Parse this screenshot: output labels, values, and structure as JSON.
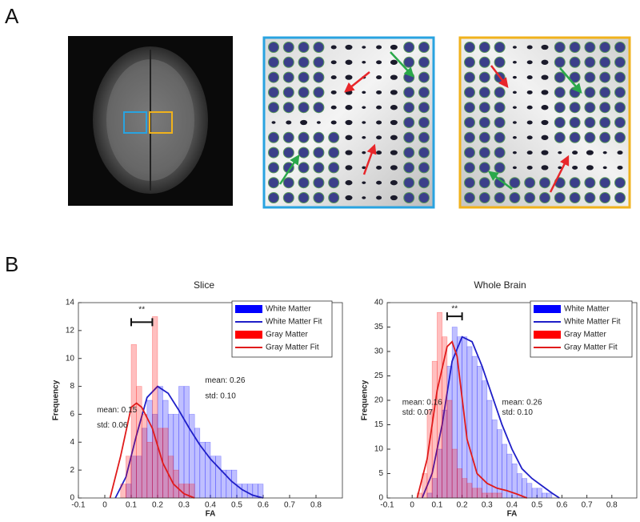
{
  "panel_labels": [
    "A",
    "B"
  ],
  "chart_data": [
    {
      "type": "histogram",
      "title": "Slice",
      "xlabel": "FA",
      "ylabel": "Frequency",
      "xlim": [
        -0.1,
        0.9
      ],
      "xticks": [
        -0.1,
        0,
        0.1,
        0.2,
        0.3,
        0.4,
        0.5,
        0.6,
        0.7,
        0.8
      ],
      "ylim": [
        0,
        14
      ],
      "yticks": [
        0,
        2,
        4,
        6,
        8,
        10,
        12,
        14
      ],
      "legend": "upper right",
      "bins": [
        0,
        0.02,
        0.04,
        0.06,
        0.08,
        0.1,
        0.12,
        0.14,
        0.16,
        0.18,
        0.2,
        0.22,
        0.24,
        0.26,
        0.28,
        0.3,
        0.32,
        0.34,
        0.36,
        0.38,
        0.4,
        0.42,
        0.44,
        0.46,
        0.48,
        0.5,
        0.52,
        0.54,
        0.56,
        0.58,
        0.6,
        0.62,
        0.64
      ],
      "series": [
        {
          "name": "White Matter",
          "color": "#0000ff",
          "values": [
            0,
            0,
            0,
            0,
            1,
            3,
            3,
            5,
            7,
            6,
            8,
            7,
            6,
            6,
            8,
            8,
            6,
            5,
            4,
            4,
            3,
            3,
            2,
            2,
            2,
            1,
            1,
            1,
            1,
            1,
            0,
            0
          ]
        },
        {
          "name": "White Matter Fit",
          "color": "#1f1fc8",
          "type": "line",
          "x": [
            0.04,
            0.08,
            0.12,
            0.16,
            0.2,
            0.24,
            0.28,
            0.32,
            0.36,
            0.4,
            0.44,
            0.48,
            0.52,
            0.56,
            0.6
          ],
          "values": [
            0,
            1.5,
            4.5,
            7.2,
            8,
            7.5,
            6.3,
            5,
            3.8,
            2.8,
            2,
            1.2,
            0.6,
            0.2,
            0
          ]
        },
        {
          "name": "Gray Matter",
          "color": "#ff0000",
          "values": [
            0,
            0,
            0,
            1,
            3,
            11,
            8,
            6,
            4,
            13,
            5,
            5,
            3,
            2,
            1,
            1,
            1,
            0,
            0,
            0,
            0,
            0,
            0,
            0,
            0,
            0,
            0,
            0,
            0,
            0,
            0,
            0
          ]
        },
        {
          "name": "Gray Matter Fit",
          "color": "#e01b1b",
          "type": "line",
          "x": [
            0.02,
            0.06,
            0.1,
            0.12,
            0.14,
            0.18,
            0.22,
            0.26,
            0.3,
            0.34
          ],
          "values": [
            0,
            3,
            6.5,
            6.8,
            6.5,
            5,
            2.5,
            1,
            0.3,
            0
          ]
        }
      ],
      "annotations": [
        {
          "text": "**",
          "color": "#111111"
        },
        {
          "text": "mean: 0.15",
          "color": "#d42020"
        },
        {
          "text": "std: 0.06",
          "color": "#d42020"
        },
        {
          "text": "mean: 0.26",
          "color": "#2a2ab8"
        },
        {
          "text": "std: 0.10",
          "color": "#2a2ab8"
        }
      ]
    },
    {
      "type": "histogram",
      "title": "Whole Brain",
      "xlabel": "FA",
      "ylabel": "Frequency",
      "xlim": [
        -0.1,
        0.9
      ],
      "xticks": [
        -0.1,
        0,
        0.1,
        0.2,
        0.3,
        0.4,
        0.5,
        0.6,
        0.7,
        0.8
      ],
      "ylim": [
        0,
        40
      ],
      "yticks": [
        0,
        5,
        10,
        15,
        20,
        25,
        30,
        35,
        40
      ],
      "legend": "upper right",
      "bins": [
        0,
        0.02,
        0.04,
        0.06,
        0.08,
        0.1,
        0.12,
        0.14,
        0.16,
        0.18,
        0.2,
        0.22,
        0.24,
        0.26,
        0.28,
        0.3,
        0.32,
        0.34,
        0.36,
        0.38,
        0.4,
        0.42,
        0.44,
        0.46,
        0.48,
        0.5,
        0.52,
        0.54,
        0.56,
        0.58,
        0.6
      ],
      "series": [
        {
          "name": "White Matter",
          "color": "#0000ff",
          "values": [
            0,
            0,
            0,
            1,
            4,
            10,
            18,
            27,
            35,
            33,
            33,
            31,
            29,
            27,
            24,
            20,
            16,
            14,
            11,
            9,
            7,
            5,
            4,
            3,
            2,
            2,
            1,
            1,
            0,
            0
          ]
        },
        {
          "name": "White Matter Fit",
          "color": "#1f1fc8",
          "type": "line",
          "x": [
            0.04,
            0.08,
            0.12,
            0.16,
            0.2,
            0.24,
            0.28,
            0.32,
            0.36,
            0.4,
            0.44,
            0.48,
            0.52,
            0.56,
            0.59
          ],
          "values": [
            0,
            5,
            15,
            28,
            33,
            32,
            27,
            21,
            15,
            10,
            6,
            4,
            2.5,
            1,
            0
          ]
        },
        {
          "name": "Gray Matter",
          "color": "#ff0000",
          "values": [
            0,
            1,
            5,
            18,
            28,
            38,
            33,
            20,
            10,
            6,
            4,
            3,
            2,
            2,
            1,
            1,
            1,
            1,
            0,
            0,
            0,
            0,
            0,
            0,
            0,
            0,
            0,
            0,
            0,
            0
          ]
        },
        {
          "name": "Gray Matter Fit",
          "color": "#e01b1b",
          "type": "line",
          "x": [
            0.02,
            0.06,
            0.1,
            0.14,
            0.16,
            0.18,
            0.22,
            0.26,
            0.3,
            0.34,
            0.38,
            0.42,
            0.46
          ],
          "values": [
            0,
            8,
            22,
            31,
            32,
            29,
            12,
            5,
            3,
            2,
            1.5,
            0.8,
            0
          ]
        }
      ],
      "annotations": [
        {
          "text": "**",
          "color": "#111111"
        },
        {
          "text": "mean: 0.16",
          "color": "#d42020"
        },
        {
          "text": "std: 0.07",
          "color": "#d42020"
        },
        {
          "text": "mean: 0.26",
          "color": "#2a2ab8"
        },
        {
          "text": "std: 0.10",
          "color": "#2a2ab8"
        }
      ]
    }
  ]
}
